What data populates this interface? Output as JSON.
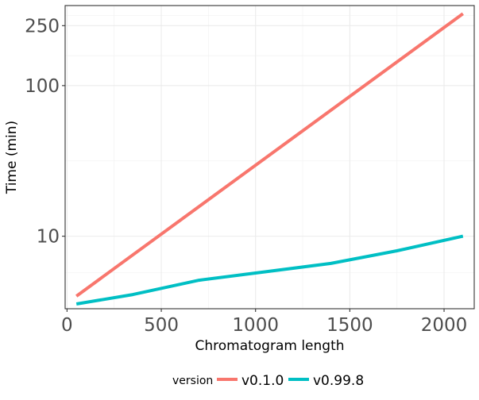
{
  "chart_data": {
    "type": "line",
    "title": "",
    "xlabel": "Chromatogram length",
    "ylabel": "Time (min)",
    "y_scale": "log10",
    "xlim": [
      -10,
      2160
    ],
    "ylim": [
      3.3,
      340
    ],
    "x_ticks": [
      0,
      500,
      1000,
      1500,
      2000
    ],
    "x_tick_labels": [
      "0",
      "500",
      "1000",
      "1500",
      "2000"
    ],
    "y_ticks": [
      10,
      100,
      250
    ],
    "y_tick_labels": [
      "10",
      "100",
      "250"
    ],
    "grid": true,
    "legend": {
      "title": "version",
      "position": "bottom"
    },
    "series": [
      {
        "name": "v0.1.0",
        "color": "#F8766D",
        "x": [
          50,
          2100
        ],
        "y": [
          4.0,
          300
        ]
      },
      {
        "name": "v0.99.8",
        "color": "#00BFC4",
        "x": [
          50,
          350,
          700,
          1050,
          1400,
          1750,
          2100
        ],
        "y": [
          3.55,
          4.1,
          5.1,
          5.8,
          6.6,
          8.0,
          10.0
        ]
      }
    ]
  }
}
